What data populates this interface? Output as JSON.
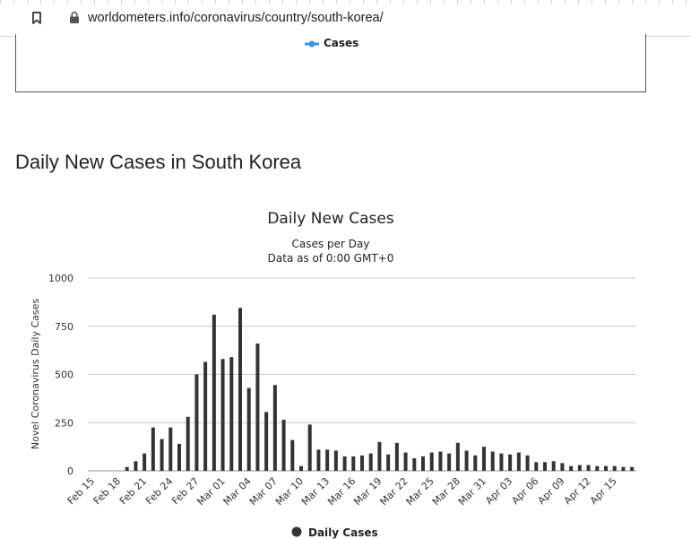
{
  "browser": {
    "url": "worldometers.info/coronavirus/country/south-korea/"
  },
  "previous_chart": {
    "legend_label": "Cases",
    "legend_color": "#3a9ad9"
  },
  "section": {
    "title": "Daily New Cases in South Korea"
  },
  "chart_data": {
    "type": "bar",
    "title": "Daily New Cases",
    "subtitle_lines": [
      "Cases per Day",
      "Data as of 0:00 GMT+0"
    ],
    "ylabel": "Novel Coronavirus Daily Cases",
    "ylim": [
      0,
      1000
    ],
    "yticks": [
      0,
      250,
      500,
      750,
      1000
    ],
    "grid": true,
    "legend_position": "bottom-center",
    "bar_color": "#333333",
    "tick_labels": [
      "Feb 15",
      "Feb 18",
      "Feb 21",
      "Feb 24",
      "Feb 27",
      "Mar 01",
      "Mar 04",
      "Mar 07",
      "Mar 10",
      "Mar 13",
      "Mar 16",
      "Mar 19",
      "Mar 22",
      "Mar 25",
      "Mar 28",
      "Mar 31",
      "Apr 03",
      "Apr 06",
      "Apr 09",
      "Apr 12",
      "Apr 15"
    ],
    "series": [
      {
        "name": "Daily Cases",
        "x": [
          "Feb 15",
          "Feb 16",
          "Feb 17",
          "Feb 18",
          "Feb 19",
          "Feb 20",
          "Feb 21",
          "Feb 22",
          "Feb 23",
          "Feb 24",
          "Feb 25",
          "Feb 26",
          "Feb 27",
          "Feb 28",
          "Feb 29",
          "Mar 01",
          "Mar 02",
          "Mar 03",
          "Mar 04",
          "Mar 05",
          "Mar 06",
          "Mar 07",
          "Mar 08",
          "Mar 09",
          "Mar 10",
          "Mar 11",
          "Mar 12",
          "Mar 13",
          "Mar 14",
          "Mar 15",
          "Mar 16",
          "Mar 17",
          "Mar 18",
          "Mar 19",
          "Mar 20",
          "Mar 21",
          "Mar 22",
          "Mar 23",
          "Mar 24",
          "Mar 25",
          "Mar 26",
          "Mar 27",
          "Mar 28",
          "Mar 29",
          "Mar 30",
          "Mar 31",
          "Apr 01",
          "Apr 02",
          "Apr 03",
          "Apr 04",
          "Apr 05",
          "Apr 06",
          "Apr 07",
          "Apr 08",
          "Apr 09",
          "Apr 10",
          "Apr 11",
          "Apr 12",
          "Apr 13",
          "Apr 14",
          "Apr 15",
          "Apr 16",
          "Apr 17"
        ],
        "values": [
          0,
          0,
          0,
          1,
          20,
          50,
          90,
          225,
          165,
          225,
          140,
          280,
          500,
          565,
          810,
          580,
          590,
          845,
          430,
          660,
          305,
          445,
          265,
          160,
          25,
          240,
          110,
          110,
          105,
          75,
          75,
          80,
          90,
          150,
          85,
          145,
          95,
          65,
          75,
          95,
          100,
          90,
          145,
          105,
          80,
          125,
          100,
          90,
          85,
          95,
          80,
          45,
          45,
          50,
          40,
          25,
          30,
          30,
          25,
          25,
          25,
          20,
          20
        ]
      }
    ]
  }
}
